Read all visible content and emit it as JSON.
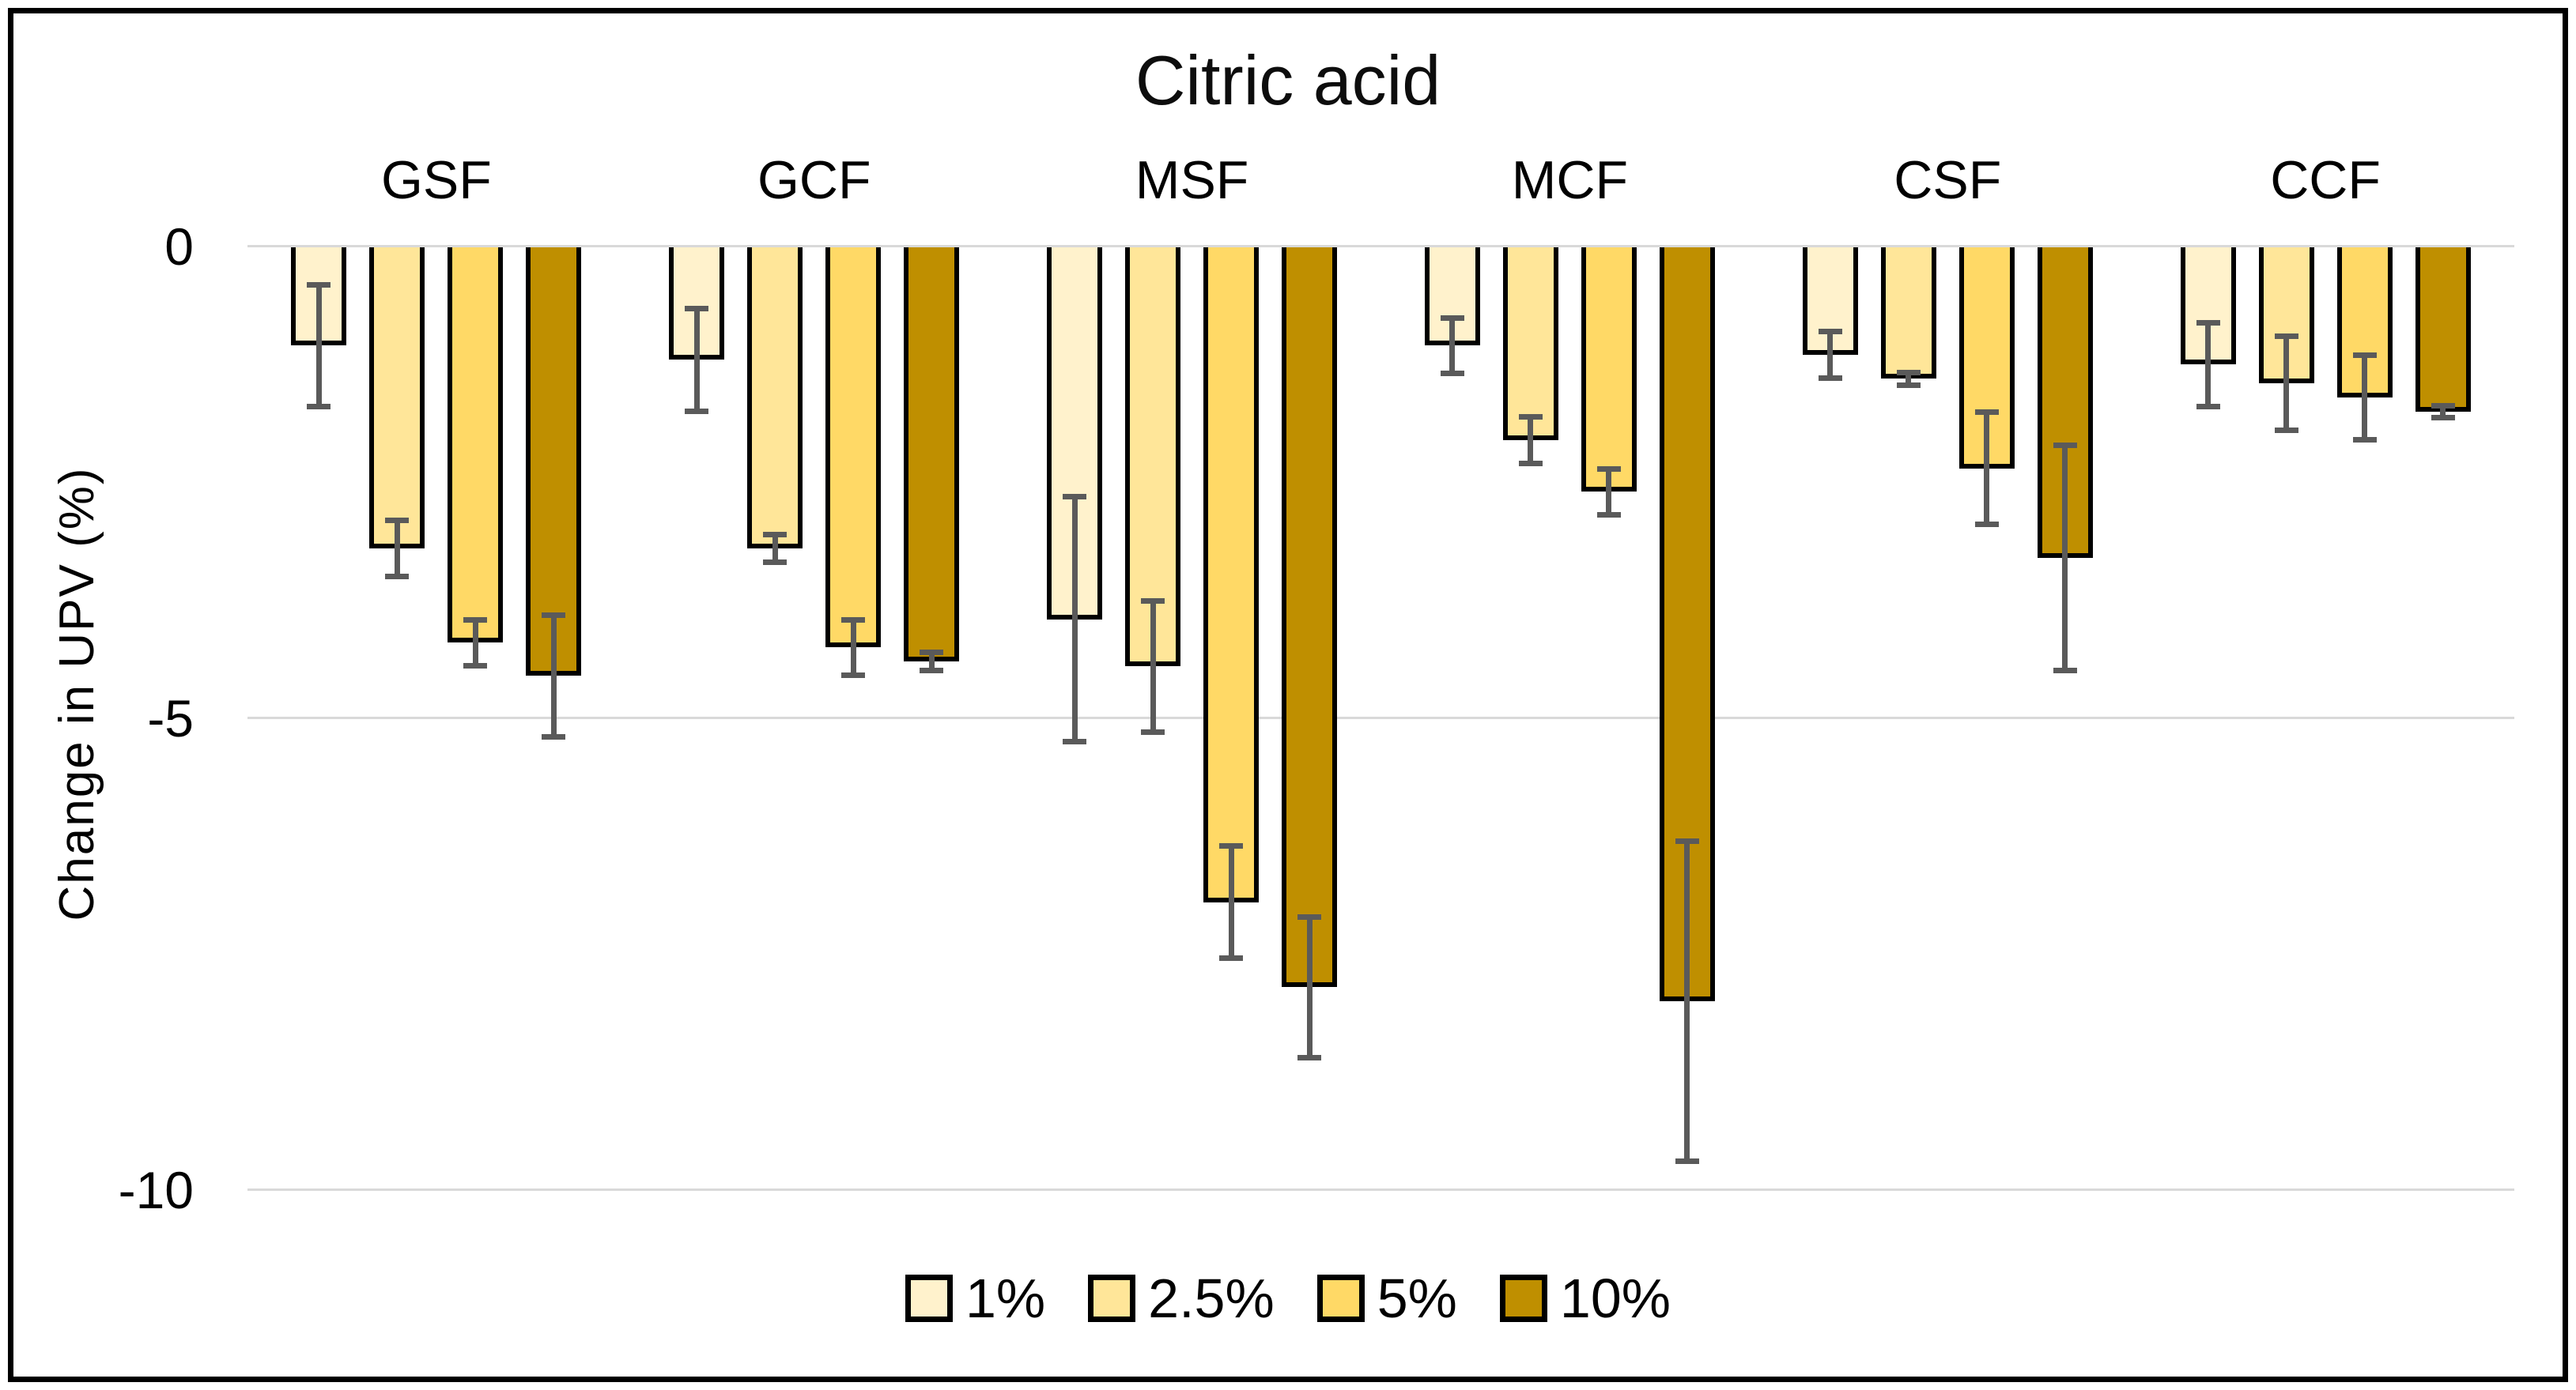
{
  "title": "Citric acid",
  "y_axis": {
    "title": "Change in UPV (%)",
    "tick_labels": [
      "0",
      "-5",
      "-10"
    ],
    "tick_values": [
      0,
      -5,
      -10
    ]
  },
  "legend": {
    "position": "bottom-center",
    "items": [
      {
        "label": "1%",
        "color": "#FFF2CC"
      },
      {
        "label": "2.5%",
        "color": "#FFE699"
      },
      {
        "label": "5%",
        "color": "#FFD966"
      },
      {
        "label": "10%",
        "color": "#BF8F00"
      }
    ]
  },
  "colors": {
    "series_1pct": "#FFF2CC",
    "series_2_5pct": "#FFE699",
    "series_5pct": "#FFD966",
    "series_10pct": "#BF8F00",
    "bar_border": "#000000",
    "error_bar": "#5a5a5a",
    "gridline": "#d9d9d9",
    "text": "#000000",
    "frame_border": "#000000",
    "background": "#ffffff"
  },
  "chart_data": {
    "type": "bar",
    "title": "Citric acid",
    "xlabel": "",
    "ylabel": "Change in UPV (%)",
    "ylim": [
      -10,
      0
    ],
    "gridlines": [
      0,
      -5,
      -10
    ],
    "grid": true,
    "legend_position": "bottom",
    "categories": [
      "GSF",
      "GCF",
      "MSF",
      "MCF",
      "CSF",
      "CCF"
    ],
    "series": [
      {
        "name": "1%",
        "color": "#FFF2CC",
        "values": [
          -1.05,
          -1.2,
          -3.95,
          -1.05,
          -1.15,
          -1.25
        ],
        "errors": [
          0.65,
          0.55,
          1.3,
          0.3,
          0.25,
          0.45
        ]
      },
      {
        "name": "2.5%",
        "color": "#FFE699",
        "values": [
          -3.2,
          -3.2,
          -4.45,
          -2.05,
          -1.4,
          -1.45
        ],
        "errors": [
          0.3,
          0.15,
          0.7,
          0.25,
          0.07,
          0.5
        ]
      },
      {
        "name": "5%",
        "color": "#FFD966",
        "values": [
          -4.2,
          -4.25,
          -6.95,
          -2.6,
          -2.35,
          -1.6
        ],
        "errors": [
          0.25,
          0.3,
          0.6,
          0.25,
          0.6,
          0.45
        ]
      },
      {
        "name": "10%",
        "color": "#BF8F00",
        "values": [
          -4.55,
          -4.4,
          -7.85,
          -8.0,
          -3.3,
          -1.75
        ],
        "errors": [
          0.65,
          0.1,
          0.75,
          1.7,
          1.2,
          0.07
        ]
      }
    ]
  }
}
